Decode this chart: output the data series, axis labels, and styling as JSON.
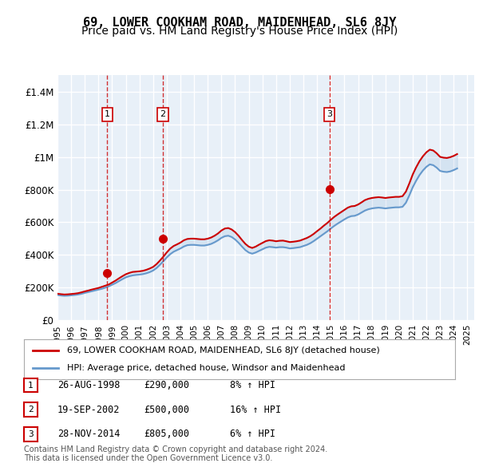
{
  "title": "69, LOWER COOKHAM ROAD, MAIDENHEAD, SL6 8JY",
  "subtitle": "Price paid vs. HM Land Registry's House Price Index (HPI)",
  "title_fontsize": 11,
  "subtitle_fontsize": 10,
  "background_color": "#ffffff",
  "plot_bg_color": "#e8f0f8",
  "grid_color": "#ffffff",
  "ylim": [
    0,
    1500000
  ],
  "yticks": [
    0,
    200000,
    400000,
    600000,
    800000,
    1000000,
    1200000,
    1400000
  ],
  "ytick_labels": [
    "£0",
    "£200K",
    "£400K",
    "£600K",
    "£800K",
    "£1M",
    "£1.2M",
    "£1.4M"
  ],
  "sale_color": "#cc0000",
  "hpi_color": "#6699cc",
  "sale_marker_color": "#cc0000",
  "transactions": [
    {
      "label": "1",
      "date": "26-AUG-1998",
      "price": 290000,
      "pct": "8%",
      "x": 1998.65
    },
    {
      "label": "2",
      "date": "19-SEP-2002",
      "price": 500000,
      "pct": "16%",
      "x": 2002.72
    },
    {
      "label": "3",
      "date": "28-NOV-2014",
      "price": 805000,
      "pct": "6%",
      "x": 2014.9
    }
  ],
  "legend_label_red": "69, LOWER COOKHAM ROAD, MAIDENHEAD, SL6 8JY (detached house)",
  "legend_label_blue": "HPI: Average price, detached house, Windsor and Maidenhead",
  "footer": "Contains HM Land Registry data © Crown copyright and database right 2024.\nThis data is licensed under the Open Government Licence v3.0.",
  "hpi_data": {
    "years": [
      1995.0,
      1995.25,
      1995.5,
      1995.75,
      1996.0,
      1996.25,
      1996.5,
      1996.75,
      1997.0,
      1997.25,
      1997.5,
      1997.75,
      1998.0,
      1998.25,
      1998.5,
      1998.75,
      1999.0,
      1999.25,
      1999.5,
      1999.75,
      2000.0,
      2000.25,
      2000.5,
      2000.75,
      2001.0,
      2001.25,
      2001.5,
      2001.75,
      2002.0,
      2002.25,
      2002.5,
      2002.75,
      2003.0,
      2003.25,
      2003.5,
      2003.75,
      2004.0,
      2004.25,
      2004.5,
      2004.75,
      2005.0,
      2005.25,
      2005.5,
      2005.75,
      2006.0,
      2006.25,
      2006.5,
      2006.75,
      2007.0,
      2007.25,
      2007.5,
      2007.75,
      2008.0,
      2008.25,
      2008.5,
      2008.75,
      2009.0,
      2009.25,
      2009.5,
      2009.75,
      2010.0,
      2010.25,
      2010.5,
      2010.75,
      2011.0,
      2011.25,
      2011.5,
      2011.75,
      2012.0,
      2012.25,
      2012.5,
      2012.75,
      2013.0,
      2013.25,
      2013.5,
      2013.75,
      2014.0,
      2014.25,
      2014.5,
      2014.75,
      2015.0,
      2015.25,
      2015.5,
      2015.75,
      2016.0,
      2016.25,
      2016.5,
      2016.75,
      2017.0,
      2017.25,
      2017.5,
      2017.75,
      2018.0,
      2018.25,
      2018.5,
      2018.75,
      2019.0,
      2019.25,
      2019.5,
      2019.75,
      2020.0,
      2020.25,
      2020.5,
      2020.75,
      2021.0,
      2021.25,
      2021.5,
      2021.75,
      2022.0,
      2022.25,
      2022.5,
      2022.75,
      2023.0,
      2023.25,
      2023.5,
      2023.75,
      2024.0,
      2024.25
    ],
    "values": [
      155000,
      152000,
      150000,
      151000,
      153000,
      155000,
      158000,
      162000,
      168000,
      173000,
      178000,
      183000,
      188000,
      193000,
      200000,
      208000,
      218000,
      228000,
      240000,
      252000,
      263000,
      270000,
      275000,
      278000,
      280000,
      283000,
      288000,
      295000,
      305000,
      320000,
      340000,
      362000,
      385000,
      405000,
      420000,
      430000,
      440000,
      452000,
      460000,
      462000,
      462000,
      460000,
      458000,
      458000,
      462000,
      468000,
      478000,
      490000,
      505000,
      515000,
      518000,
      510000,
      495000,
      475000,
      452000,
      430000,
      415000,
      408000,
      415000,
      425000,
      435000,
      445000,
      450000,
      448000,
      445000,
      448000,
      448000,
      445000,
      440000,
      442000,
      445000,
      448000,
      455000,
      462000,
      472000,
      485000,
      500000,
      515000,
      530000,
      545000,
      562000,
      578000,
      592000,
      605000,
      618000,
      630000,
      638000,
      640000,
      648000,
      660000,
      672000,
      680000,
      685000,
      688000,
      690000,
      688000,
      685000,
      688000,
      690000,
      692000,
      692000,
      695000,
      720000,
      765000,
      815000,
      855000,
      890000,
      918000,
      940000,
      955000,
      950000,
      935000,
      915000,
      910000,
      908000,
      912000,
      920000,
      930000
    ]
  },
  "sale_hpi_line": {
    "years": [
      1995.0,
      1995.25,
      1995.5,
      1995.75,
      1996.0,
      1996.25,
      1996.5,
      1996.75,
      1997.0,
      1997.25,
      1997.5,
      1997.75,
      1998.0,
      1998.25,
      1998.5,
      1998.75,
      1999.0,
      1999.25,
      1999.5,
      1999.75,
      2000.0,
      2000.25,
      2000.5,
      2000.75,
      2001.0,
      2001.25,
      2001.5,
      2001.75,
      2002.0,
      2002.25,
      2002.5,
      2002.75,
      2003.0,
      2003.25,
      2003.5,
      2003.75,
      2004.0,
      2004.25,
      2004.5,
      2004.75,
      2005.0,
      2005.25,
      2005.5,
      2005.75,
      2006.0,
      2006.25,
      2006.5,
      2006.75,
      2007.0,
      2007.25,
      2007.5,
      2007.75,
      2008.0,
      2008.25,
      2008.5,
      2008.75,
      2009.0,
      2009.25,
      2009.5,
      2009.75,
      2010.0,
      2010.25,
      2010.5,
      2010.75,
      2011.0,
      2011.25,
      2011.5,
      2011.75,
      2012.0,
      2012.25,
      2012.5,
      2012.75,
      2013.0,
      2013.25,
      2013.5,
      2013.75,
      2014.0,
      2014.25,
      2014.5,
      2014.75,
      2015.0,
      2015.25,
      2015.5,
      2015.75,
      2016.0,
      2016.25,
      2016.5,
      2016.75,
      2017.0,
      2017.25,
      2017.5,
      2017.75,
      2018.0,
      2018.25,
      2018.5,
      2018.75,
      2019.0,
      2019.25,
      2019.5,
      2019.75,
      2020.0,
      2020.25,
      2020.5,
      2020.75,
      2021.0,
      2021.25,
      2021.5,
      2021.75,
      2022.0,
      2022.25,
      2022.5,
      2022.75,
      2023.0,
      2023.25,
      2023.5,
      2023.75,
      2024.0,
      2024.25
    ],
    "values": [
      163000,
      160000,
      158000,
      159000,
      161000,
      163000,
      166000,
      171000,
      177000,
      182000,
      188000,
      193000,
      198000,
      205000,
      212000,
      219000,
      231000,
      243000,
      257000,
      270000,
      282000,
      290000,
      296000,
      298000,
      300000,
      303000,
      309000,
      317000,
      327000,
      344000,
      366000,
      390000,
      416000,
      439000,
      455000,
      465000,
      476000,
      490000,
      498000,
      500000,
      500000,
      498000,
      496000,
      496000,
      500000,
      507000,
      518000,
      532000,
      550000,
      562000,
      565000,
      556000,
      540000,
      518000,
      492000,
      468000,
      451000,
      443000,
      451000,
      463000,
      474000,
      485000,
      490000,
      488000,
      484000,
      487000,
      488000,
      484000,
      479000,
      481000,
      484000,
      488000,
      496000,
      504000,
      515000,
      529000,
      546000,
      562000,
      580000,
      596000,
      615000,
      633000,
      648000,
      662000,
      676000,
      690000,
      698000,
      700000,
      709000,
      722000,
      736000,
      744000,
      749000,
      752000,
      754000,
      752000,
      749000,
      752000,
      754000,
      756000,
      756000,
      760000,
      788000,
      838000,
      893000,
      937000,
      975000,
      1005000,
      1029000,
      1045000,
      1040000,
      1023000,
      1001000,
      996000,
      994000,
      999000,
      1007000,
      1018000
    ]
  }
}
